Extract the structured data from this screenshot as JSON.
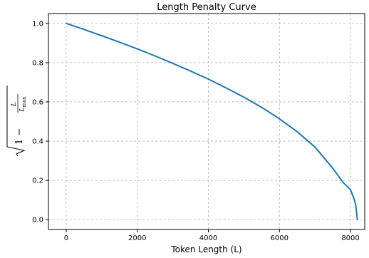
{
  "chart_data": {
    "type": "line",
    "title": "Length Penalty Curve",
    "xlabel": "Token Length (L)",
    "ylabel": "√(1 − L / L_max)",
    "xlim": [
      -500,
      8400
    ],
    "ylim": [
      -0.05,
      1.05
    ],
    "xticks": [
      0,
      2000,
      4000,
      6000,
      8000
    ],
    "xtick_labels": [
      "0",
      "2000",
      "4000",
      "6000",
      "8000"
    ],
    "yticks": [
      0.0,
      0.2,
      0.4,
      0.6,
      0.8,
      1.0
    ],
    "ytick_labels": [
      "0.0",
      "0.2",
      "0.4",
      "0.6",
      "0.8",
      "1.0"
    ],
    "grid": true,
    "series": [
      {
        "color": "#1f77b4",
        "x": [
          0,
          500,
          1000,
          1500,
          2000,
          2500,
          3000,
          3500,
          4000,
          4500,
          5000,
          5500,
          6000,
          6500,
          7000,
          7500,
          7800,
          8000,
          8100,
          8150,
          8192
        ],
        "y": [
          1.0,
          0.969,
          0.937,
          0.904,
          0.87,
          0.834,
          0.796,
          0.757,
          0.716,
          0.671,
          0.624,
          0.572,
          0.514,
          0.448,
          0.37,
          0.262,
          0.188,
          0.153,
          0.106,
          0.072,
          0.0
        ]
      }
    ]
  }
}
